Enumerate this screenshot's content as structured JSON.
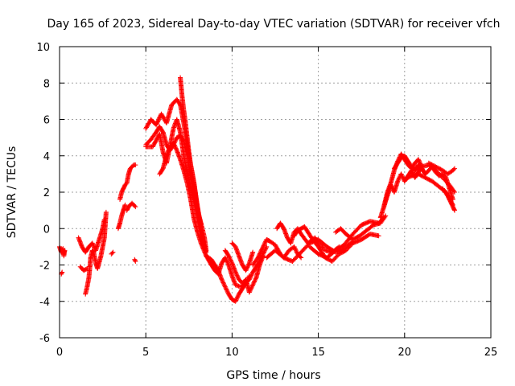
{
  "chart_data": {
    "type": "scatter",
    "title": "Day 165 of 2023, Sidereal Day-to-day VTEC variation (SDTVAR) for receiver vfch",
    "xlabel": "GPS time / hours",
    "ylabel": "SDTVAR / TECUs",
    "xlim": [
      0,
      25
    ],
    "ylim": [
      -6,
      10
    ],
    "x_ticks": [
      0,
      5,
      10,
      15,
      20,
      25
    ],
    "y_ticks": [
      -6,
      -4,
      -2,
      0,
      2,
      4,
      6,
      8,
      10
    ],
    "grid": true,
    "marker": "+",
    "series": [
      {
        "name": "SDTVAR",
        "color": "#ff0000",
        "segments": [
          {
            "x": [
              0.0,
              0.1,
              0.2,
              0.25,
              0.3
            ],
            "y": [
              -1.0,
              -1.3,
              -1.1,
              -1.5,
              -1.2
            ]
          },
          {
            "x": [
              0.1,
              0.15
            ],
            "y": [
              -2.5,
              -2.4
            ]
          },
          {
            "x": [
              1.1,
              1.3,
              1.5,
              1.7,
              1.9,
              2.1,
              2.3,
              2.5,
              2.6
            ],
            "y": [
              -0.5,
              -1.0,
              -1.3,
              -1.0,
              -0.8,
              -1.2,
              -0.6,
              0.0,
              0.5
            ]
          },
          {
            "x": [
              1.5,
              1.6,
              1.7,
              1.75,
              1.8,
              1.9,
              2.0,
              2.1,
              2.2,
              2.4,
              2.6,
              2.7
            ],
            "y": [
              -3.6,
              -3.2,
              -2.7,
              -2.2,
              -1.6,
              -1.2,
              -1.4,
              -1.9,
              -2.2,
              -1.5,
              -0.5,
              0.9
            ]
          },
          {
            "x": [
              1.2,
              1.4,
              1.6
            ],
            "y": [
              -2.1,
              -2.3,
              -2.2
            ]
          },
          {
            "x": [
              3.0,
              3.1
            ],
            "y": [
              -1.4,
              -1.3
            ]
          },
          {
            "x": [
              3.4,
              3.5,
              3.6,
              3.7,
              3.8
            ],
            "y": [
              0.0,
              0.3,
              0.7,
              1.0,
              1.3
            ]
          },
          {
            "x": [
              3.5,
              3.6,
              3.7,
              3.8,
              3.9,
              4.0,
              4.1,
              4.2,
              4.3,
              4.4
            ],
            "y": [
              1.6,
              2.0,
              2.2,
              2.4,
              2.5,
              3.0,
              3.3,
              3.4,
              3.5,
              3.5
            ]
          },
          {
            "x": [
              3.9,
              4.0,
              4.1,
              4.2,
              4.3,
              4.4
            ],
            "y": [
              1.0,
              1.2,
              1.3,
              1.4,
              1.3,
              1.2
            ]
          },
          {
            "x": [
              4.35,
              4.4
            ],
            "y": [
              -1.7,
              -1.8
            ]
          },
          {
            "x": [
              5.0,
              5.3,
              5.6,
              5.9,
              6.2,
              6.5,
              6.8,
              7.0,
              7.2,
              7.5,
              7.8,
              8.0,
              8.2,
              8.4,
              8.5
            ],
            "y": [
              5.5,
              6.0,
              5.7,
              6.3,
              5.8,
              6.8,
              7.1,
              6.8,
              5.8,
              4.0,
              2.5,
              1.0,
              0.3,
              -0.5,
              -1.2
            ]
          },
          {
            "x": [
              5.0,
              5.3,
              5.6,
              5.8,
              6.0,
              6.2,
              6.4,
              6.6,
              6.8,
              7.0,
              7.2,
              7.4,
              7.6,
              7.8,
              8.0,
              8.2
            ],
            "y": [
              4.6,
              4.9,
              5.3,
              5.6,
              5.3,
              4.6,
              4.3,
              4.6,
              5.0,
              5.1,
              4.8,
              4.0,
              2.8,
              1.8,
              1.0,
              0.2
            ]
          },
          {
            "x": [
              5.0,
              5.4,
              5.8,
              6.0,
              6.2,
              6.4,
              6.6,
              6.8,
              7.0,
              7.2,
              7.4,
              7.6,
              7.8,
              8.0,
              8.2,
              8.4
            ],
            "y": [
              4.5,
              4.5,
              5.2,
              4.2,
              3.6,
              4.5,
              5.5,
              6.0,
              5.3,
              4.0,
              3.0,
              2.3,
              1.5,
              0.5,
              -0.2,
              -1.0
            ]
          },
          {
            "x": [
              5.8,
              6.0,
              6.2,
              6.4,
              6.6,
              6.8,
              7.0,
              7.2,
              7.4,
              7.6,
              7.8,
              8.0,
              8.2,
              8.5,
              8.8
            ],
            "y": [
              3.0,
              3.3,
              4.0,
              4.5,
              4.7,
              4.3,
              3.8,
              3.2,
              2.5,
              1.6,
              0.5,
              -0.2,
              -0.8,
              -1.5,
              -2.0
            ]
          },
          {
            "x": [
              7.0,
              7.05,
              7.1,
              7.2,
              7.3,
              7.4,
              7.5,
              7.6,
              7.7,
              7.8,
              7.9,
              8.0,
              8.1,
              8.2,
              8.3,
              8.4,
              8.5
            ],
            "y": [
              8.3,
              7.8,
              7.3,
              6.5,
              5.8,
              5.0,
              4.2,
              3.5,
              3.0,
              2.4,
              1.8,
              1.2,
              0.6,
              0.0,
              -0.5,
              -1.0,
              -1.3
            ]
          },
          {
            "x": [
              8.5,
              8.8,
              9.0,
              9.2,
              9.4,
              9.6,
              9.8,
              10.0,
              10.2,
              10.4,
              10.6,
              10.8,
              11.0
            ],
            "y": [
              -1.5,
              -1.7,
              -2.0,
              -2.3,
              -2.8,
              -3.2,
              -3.6,
              -3.9,
              -4.0,
              -3.6,
              -3.3,
              -3.0,
              -2.6
            ]
          },
          {
            "x": [
              8.6,
              8.8,
              9.0,
              9.2,
              9.4,
              9.6,
              9.8,
              10.0,
              10.2,
              10.5,
              10.8,
              11.0,
              11.2,
              11.4,
              11.6,
              11.8,
              12.0
            ],
            "y": [
              -1.6,
              -2.0,
              -2.3,
              -2.5,
              -1.9,
              -1.6,
              -2.0,
              -2.6,
              -3.1,
              -3.2,
              -3.0,
              -2.8,
              -2.4,
              -2.1,
              -1.8,
              -1.4,
              -1.0
            ]
          },
          {
            "x": [
              9.6,
              9.8,
              10.0,
              10.2,
              10.4,
              10.6,
              10.8,
              11.0,
              11.2,
              11.4,
              11.6,
              11.8
            ],
            "y": [
              -1.2,
              -1.5,
              -1.9,
              -2.4,
              -2.8,
              -3.0,
              -2.8,
              -3.5,
              -3.1,
              -2.7,
              -2.0,
              -1.5
            ]
          },
          {
            "x": [
              10.0,
              10.2,
              10.4,
              10.6,
              10.8,
              11.0,
              11.2
            ],
            "y": [
              -0.8,
              -1.0,
              -1.5,
              -2.0,
              -2.3,
              -1.9,
              -1.3
            ]
          },
          {
            "x": [
              11.2,
              11.5,
              11.8,
              12.0,
              12.2,
              12.5,
              12.8,
              13.0,
              13.3,
              13.6,
              13.8,
              14.0
            ],
            "y": [
              -2.0,
              -1.6,
              -1.0,
              -0.6,
              -0.7,
              -0.9,
              -1.4,
              -1.6,
              -1.2,
              -1.0,
              -1.4,
              -1.6
            ]
          },
          {
            "x": [
              12.0,
              12.5,
              13.0,
              13.5,
              14.0,
              14.5,
              15.0,
              15.5,
              16.0,
              16.5,
              17.0
            ],
            "y": [
              -1.6,
              -1.2,
              -1.6,
              -1.8,
              -1.3,
              -0.8,
              -0.6,
              -1.0,
              -1.3,
              -1.1,
              -0.7
            ]
          },
          {
            "x": [
              12.6,
              12.8,
              13.0,
              13.2,
              13.4,
              13.6,
              13.8,
              14.0,
              14.4,
              14.8,
              15.0,
              15.4,
              15.8,
              16.2
            ],
            "y": [
              0.0,
              0.3,
              0.0,
              -0.5,
              -0.8,
              -0.2,
              0.0,
              -0.3,
              -0.8,
              -0.5,
              -0.8,
              -1.2,
              -1.3,
              -1.0
            ]
          },
          {
            "x": [
              13.6,
              13.8,
              14.0,
              14.2,
              14.6,
              15.0,
              15.4,
              15.8,
              16.2,
              16.6,
              17.0,
              17.5,
              18.0,
              18.5
            ],
            "y": [
              -0.4,
              -0.1,
              0.0,
              0.1,
              -0.5,
              -1.0,
              -1.6,
              -1.8,
              -1.4,
              -1.2,
              -0.8,
              -0.6,
              -0.3,
              -0.4
            ]
          },
          {
            "x": [
              14.5,
              15.0,
              15.5,
              16.0,
              16.5,
              17.0,
              17.5,
              18.0,
              18.5,
              18.8
            ],
            "y": [
              -1.0,
              -1.4,
              -1.6,
              -1.2,
              -0.9,
              -0.3,
              0.2,
              0.4,
              0.3,
              0.6
            ]
          },
          {
            "x": [
              16.0,
              16.3,
              16.6,
              17.0,
              17.4,
              17.8,
              18.2,
              18.6,
              18.9
            ],
            "y": [
              -0.2,
              0.0,
              -0.3,
              -0.6,
              -0.4,
              -0.1,
              0.2,
              0.3,
              0.7
            ]
          },
          {
            "x": [
              18.6,
              18.8,
              19.0,
              19.2,
              19.4,
              19.6,
              19.8,
              20.0,
              20.2,
              20.4,
              20.6,
              20.8,
              21.0
            ],
            "y": [
              0.6,
              1.2,
              2.0,
              2.5,
              3.2,
              3.7,
              4.1,
              3.8,
              3.5,
              3.3,
              3.6,
              3.8,
              3.4
            ]
          },
          {
            "x": [
              18.8,
              19.0,
              19.2,
              19.4,
              19.6,
              19.8,
              20.0,
              20.2,
              20.4,
              20.6,
              20.8,
              21.0,
              21.2
            ],
            "y": [
              1.2,
              1.8,
              2.4,
              2.0,
              2.6,
              3.0,
              2.6,
              2.9,
              3.2,
              2.8,
              3.1,
              3.3,
              3.0
            ]
          },
          {
            "x": [
              19.4,
              19.6,
              19.8,
              20.0,
              20.2,
              20.4,
              20.6,
              20.8,
              21.0,
              21.2,
              21.4,
              21.6,
              21.8,
              22.0,
              22.2,
              22.4,
              22.6,
              22.8
            ],
            "y": [
              3.3,
              3.6,
              3.9,
              4.0,
              3.7,
              3.4,
              3.2,
              3.5,
              3.3,
              3.0,
              3.2,
              3.4,
              3.1,
              2.9,
              3.0,
              2.8,
              2.2,
              1.6
            ]
          },
          {
            "x": [
              20.0,
              20.4,
              20.8,
              21.2,
              21.6,
              22.0,
              22.4,
              22.8
            ],
            "y": [
              2.7,
              2.9,
              3.0,
              2.8,
              2.6,
              2.3,
              2.0,
              1.3
            ]
          },
          {
            "x": [
              20.6,
              21.0,
              21.4,
              21.8,
              22.2,
              22.6,
              22.9
            ],
            "y": [
              3.2,
              3.4,
              3.5,
              3.2,
              2.8,
              2.4,
              2.0
            ]
          },
          {
            "x": [
              21.4,
              21.8,
              22.2,
              22.5,
              22.8,
              22.9
            ],
            "y": [
              3.6,
              3.4,
              3.2,
              3.0,
              3.2,
              3.3
            ]
          },
          {
            "x": [
              22.2,
              22.5,
              22.8,
              22.9
            ],
            "y": [
              2.2,
              1.8,
              1.2,
              1.0
            ]
          }
        ]
      }
    ]
  }
}
